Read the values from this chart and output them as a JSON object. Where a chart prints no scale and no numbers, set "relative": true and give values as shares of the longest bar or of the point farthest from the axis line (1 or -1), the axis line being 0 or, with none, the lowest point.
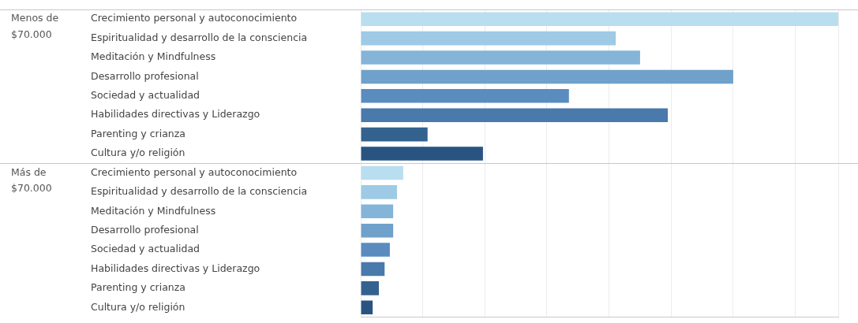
{
  "chart_data": {
    "type": "bar",
    "orientation": "horizontal",
    "relative": true,
    "grid": "x",
    "legend": false,
    "categories": [
      "Crecimiento personal y autoconocimiento",
      "Espiritualidad y desarrollo de la consciencia",
      "Meditación y Mindfulness",
      "Desarrollo profesional",
      "Sociedad y actualidad",
      "Habilidades directivas y Liderazgo",
      "Parenting y crianza",
      "Cultura y/o religión",
      "Crecimiento personal y autoconocimiento",
      "Espiritualidad y desarrollo de la consciencia",
      "Meditación y Mindfulness",
      "Desarrollo profesional",
      "Sociedad y actualidad",
      "Habilidades directivas y Liderazgo",
      "Parenting y crianza",
      "Cultura y/o religión"
    ],
    "values": [
      1,
      0.534,
      0.585,
      0.78,
      0.436,
      0.643,
      0.14,
      0.256,
      0.089,
      0.076,
      0.068,
      0.068,
      0.061,
      0.05,
      0.038,
      0.025
    ],
    "colors": [
      "#b9def0",
      "#9ecae5",
      "#85b4d9",
      "#6fa1cb",
      "#5a8cbf",
      "#4a79ab",
      "#34628f",
      "#295482",
      "#b9def0",
      "#9ecae5",
      "#85b4d9",
      "#6fa1cb",
      "#5a8cbf",
      "#4a79ab",
      "#34628f",
      "#295482"
    ],
    "annotations": [
      "Menos de $70.000",
      "Más de $70.000"
    ]
  }
}
